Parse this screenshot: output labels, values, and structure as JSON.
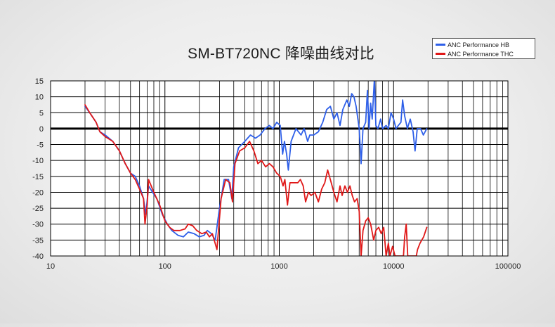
{
  "chart_data": {
    "type": "line",
    "title": "SM-BT720NC 降噪曲线对比",
    "xlabel": "",
    "ylabel": "",
    "x_scale": "log",
    "xlim": [
      10,
      100000
    ],
    "ylim": [
      -40,
      15
    ],
    "grid": true,
    "legend_position": "top-right",
    "x_ticks": [
      "10",
      "100",
      "1000",
      "10000",
      "100000"
    ],
    "y_ticks": [
      "15",
      "10",
      "5",
      "0",
      "-5",
      "-10",
      "-15",
      "-20",
      "-25",
      "-30",
      "-35",
      "-40"
    ],
    "series": [
      {
        "name": "ANC Performance HB",
        "color": "#2e5fe8",
        "points": [
          [
            20,
            7
          ],
          [
            22,
            5
          ],
          [
            25,
            2
          ],
          [
            27,
            -1
          ],
          [
            30,
            -2
          ],
          [
            35,
            -4
          ],
          [
            40,
            -7
          ],
          [
            45,
            -11
          ],
          [
            50,
            -14
          ],
          [
            55,
            -15
          ],
          [
            60,
            -18
          ],
          [
            65,
            -22
          ],
          [
            68,
            -27
          ],
          [
            72,
            -18
          ],
          [
            78,
            -20
          ],
          [
            85,
            -22
          ],
          [
            95,
            -27
          ],
          [
            105,
            -30
          ],
          [
            115,
            -32
          ],
          [
            130,
            -33.5
          ],
          [
            145,
            -34
          ],
          [
            160,
            -32.5
          ],
          [
            180,
            -33
          ],
          [
            200,
            -34
          ],
          [
            220,
            -33.5
          ],
          [
            235,
            -32
          ],
          [
            255,
            -33
          ],
          [
            275,
            -35
          ],
          [
            300,
            -25
          ],
          [
            330,
            -16
          ],
          [
            360,
            -16
          ],
          [
            385,
            -22
          ],
          [
            400,
            -12
          ],
          [
            440,
            -6
          ],
          [
            500,
            -4
          ],
          [
            560,
            -2
          ],
          [
            620,
            -3
          ],
          [
            680,
            -2
          ],
          [
            750,
            0
          ],
          [
            820,
            1
          ],
          [
            880,
            0
          ],
          [
            950,
            2
          ],
          [
            1020,
            1
          ],
          [
            1070,
            -8
          ],
          [
            1110,
            -4
          ],
          [
            1160,
            -8
          ],
          [
            1200,
            -13
          ],
          [
            1270,
            -4
          ],
          [
            1400,
            0
          ],
          [
            1550,
            -2
          ],
          [
            1650,
            0
          ],
          [
            1770,
            -4
          ],
          [
            1850,
            -2
          ],
          [
            2000,
            -2
          ],
          [
            2200,
            -1
          ],
          [
            2400,
            2
          ],
          [
            2600,
            6
          ],
          [
            2800,
            7
          ],
          [
            3000,
            3
          ],
          [
            3200,
            5
          ],
          [
            3400,
            1
          ],
          [
            3600,
            6
          ],
          [
            3900,
            9
          ],
          [
            4100,
            7
          ],
          [
            4300,
            11
          ],
          [
            4500,
            10
          ],
          [
            4700,
            7
          ],
          [
            5000,
            0
          ],
          [
            5200,
            -11
          ],
          [
            5400,
            0
          ],
          [
            5700,
            2
          ],
          [
            5900,
            12
          ],
          [
            6100,
            0
          ],
          [
            6300,
            8
          ],
          [
            6500,
            3
          ],
          [
            6800,
            16
          ],
          [
            7000,
            1
          ],
          [
            7300,
            0
          ],
          [
            7700,
            3
          ],
          [
            8000,
            0
          ],
          [
            8600,
            1
          ],
          [
            9000,
            0
          ],
          [
            9500,
            5
          ],
          [
            10000,
            3
          ],
          [
            10500,
            0
          ],
          [
            11000,
            1
          ],
          [
            11600,
            2
          ],
          [
            12000,
            9
          ],
          [
            12500,
            4
          ],
          [
            13200,
            0
          ],
          [
            14000,
            3
          ],
          [
            14800,
            -1
          ],
          [
            15400,
            -7
          ],
          [
            16100,
            0
          ],
          [
            17200,
            0
          ],
          [
            18200,
            -2
          ],
          [
            19500,
            0
          ]
        ]
      },
      {
        "name": "ANC Performance THC",
        "color": "#e01818",
        "points": [
          [
            20,
            7.5
          ],
          [
            22,
            5
          ],
          [
            25,
            2
          ],
          [
            27,
            -1
          ],
          [
            30,
            -2.5
          ],
          [
            35,
            -4
          ],
          [
            40,
            -7
          ],
          [
            45,
            -11
          ],
          [
            50,
            -14
          ],
          [
            55,
            -16
          ],
          [
            60,
            -19
          ],
          [
            65,
            -22
          ],
          [
            67,
            -30
          ],
          [
            70,
            -24
          ],
          [
            72,
            -16
          ],
          [
            80,
            -20
          ],
          [
            90,
            -24
          ],
          [
            100,
            -29
          ],
          [
            110,
            -31
          ],
          [
            120,
            -32
          ],
          [
            135,
            -32
          ],
          [
            150,
            -31.5
          ],
          [
            160,
            -30
          ],
          [
            175,
            -30.5
          ],
          [
            190,
            -32
          ],
          [
            210,
            -33
          ],
          [
            230,
            -32.5
          ],
          [
            245,
            -34
          ],
          [
            260,
            -33
          ],
          [
            285,
            -38
          ],
          [
            310,
            -22
          ],
          [
            340,
            -16
          ],
          [
            370,
            -17
          ],
          [
            390,
            -23
          ],
          [
            410,
            -11
          ],
          [
            450,
            -7
          ],
          [
            500,
            -6
          ],
          [
            550,
            -4
          ],
          [
            600,
            -7
          ],
          [
            650,
            -11
          ],
          [
            700,
            -10
          ],
          [
            760,
            -12
          ],
          [
            820,
            -11
          ],
          [
            880,
            -12
          ],
          [
            950,
            -14
          ],
          [
            1020,
            -15
          ],
          [
            1080,
            -18
          ],
          [
            1120,
            -16
          ],
          [
            1180,
            -24
          ],
          [
            1240,
            -17
          ],
          [
            1350,
            -17
          ],
          [
            1450,
            -17
          ],
          [
            1530,
            -16
          ],
          [
            1620,
            -18
          ],
          [
            1700,
            -23
          ],
          [
            1800,
            -20
          ],
          [
            1900,
            -21
          ],
          [
            2050,
            -20
          ],
          [
            2200,
            -23
          ],
          [
            2350,
            -19
          ],
          [
            2500,
            -17
          ],
          [
            2650,
            -13
          ],
          [
            2850,
            -17
          ],
          [
            3000,
            -20
          ],
          [
            3200,
            -23
          ],
          [
            3400,
            -18
          ],
          [
            3550,
            -21
          ],
          [
            3750,
            -18
          ],
          [
            3950,
            -20
          ],
          [
            4150,
            -18
          ],
          [
            4350,
            -21
          ],
          [
            4550,
            -23
          ],
          [
            4800,
            -22
          ],
          [
            5000,
            -26
          ],
          [
            5200,
            -40
          ],
          [
            5400,
            -32
          ],
          [
            5700,
            -29
          ],
          [
            6000,
            -28
          ],
          [
            6300,
            -30
          ],
          [
            6700,
            -35
          ],
          [
            7000,
            -32
          ],
          [
            7400,
            -31
          ],
          [
            7800,
            -33
          ],
          [
            8200,
            -31
          ],
          [
            8600,
            -40
          ],
          [
            9000,
            -36
          ],
          [
            9300,
            -40
          ],
          [
            9800,
            -37
          ],
          [
            10300,
            -40
          ],
          [
            12200,
            -40
          ],
          [
            12500,
            -34
          ],
          [
            12900,
            -30
          ],
          [
            13300,
            -40
          ],
          [
            15800,
            -40
          ],
          [
            16200,
            -38
          ],
          [
            17000,
            -36
          ],
          [
            18300,
            -34
          ],
          [
            19500,
            -31
          ]
        ]
      }
    ]
  }
}
